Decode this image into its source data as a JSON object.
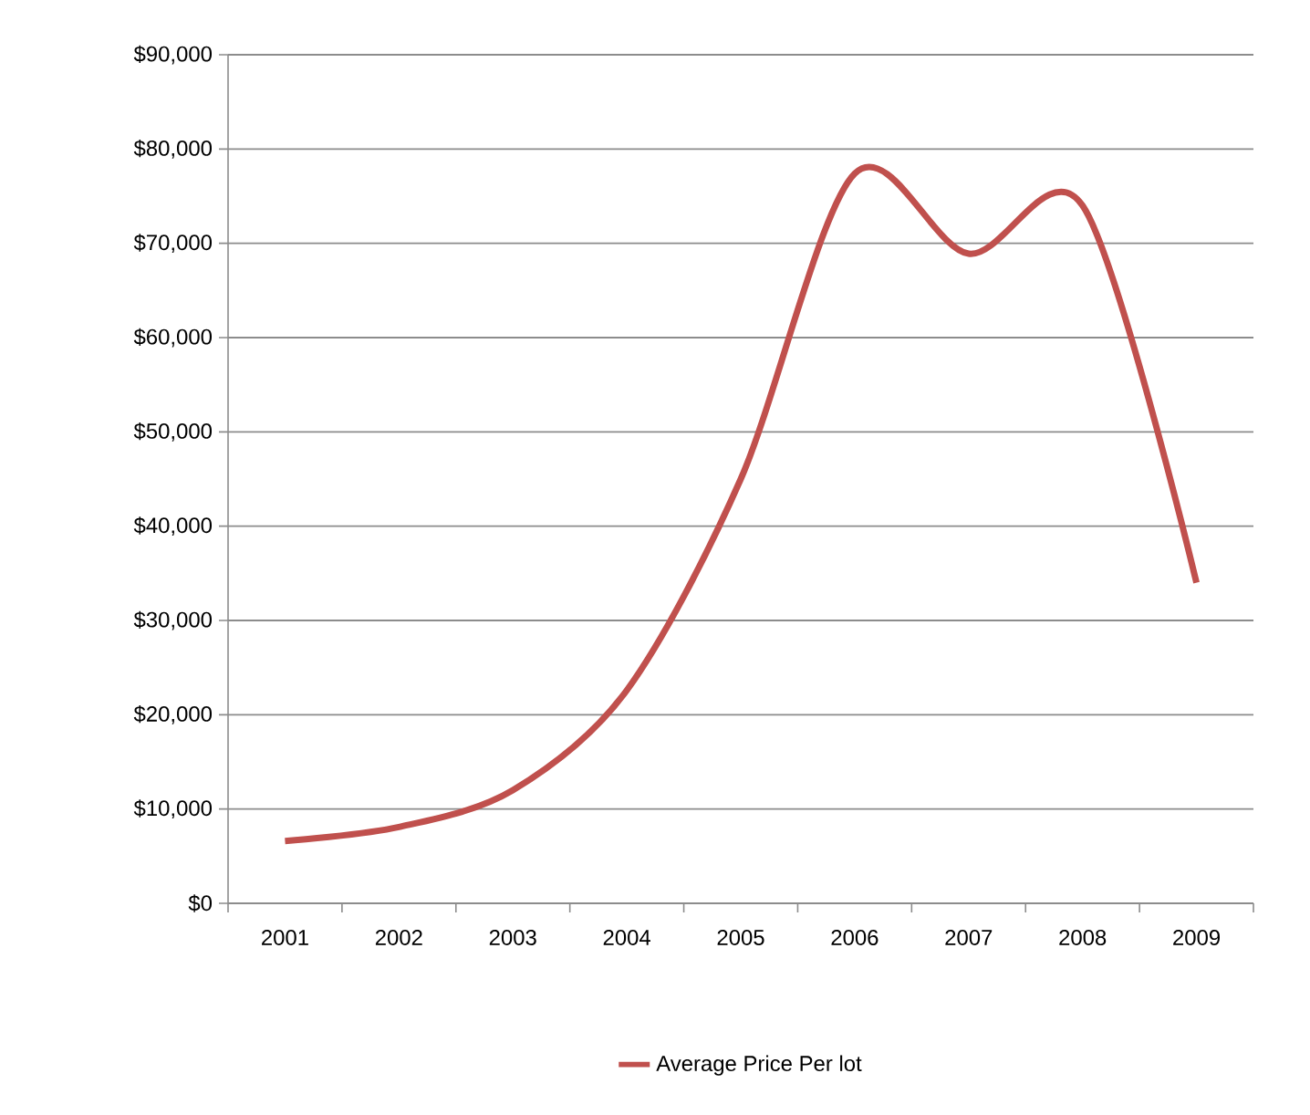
{
  "chart_data": {
    "type": "line",
    "categories": [
      "2001",
      "2002",
      "2003",
      "2004",
      "2005",
      "2006",
      "2007",
      "2008",
      "2009"
    ],
    "series": [
      {
        "name": "Average Price Per lot",
        "color": "#c0504d",
        "values": [
          6600,
          8100,
          12000,
          22600,
          45000,
          77400,
          68900,
          74000,
          34000
        ]
      }
    ],
    "ylim": [
      0,
      90000
    ],
    "yticks": [
      {
        "value": 0,
        "label": "$0"
      },
      {
        "value": 10000,
        "label": "$10,000"
      },
      {
        "value": 20000,
        "label": "$20,000"
      },
      {
        "value": 30000,
        "label": "$30,000"
      },
      {
        "value": 40000,
        "label": "$40,000"
      },
      {
        "value": 50000,
        "label": "$50,000"
      },
      {
        "value": 60000,
        "label": "$60,000"
      },
      {
        "value": 70000,
        "label": "$70,000"
      },
      {
        "value": 80000,
        "label": "$80,000"
      },
      {
        "value": 90000,
        "label": "$90,000"
      }
    ],
    "grid": "y",
    "legend": "bottom",
    "marker": "none",
    "line_style": "solid"
  }
}
